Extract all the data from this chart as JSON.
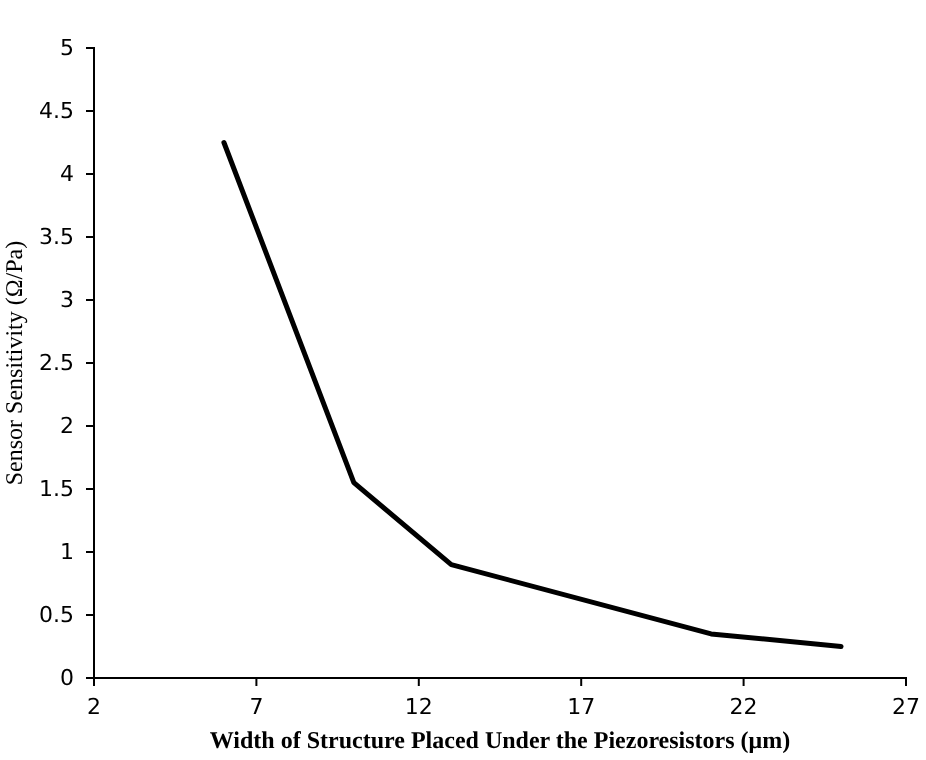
{
  "chart_data": {
    "type": "line",
    "xlabel": "Width of Structure Placed Under the Piezoresistors (μm)",
    "ylabel": "Sensor Sensitivity (Ω/Pa)",
    "x": [
      6,
      10,
      13,
      21,
      25
    ],
    "series": [
      {
        "color": "#000000",
        "values": [
          4.25,
          1.55,
          0.9,
          0.35,
          0.25
        ]
      }
    ],
    "xlim": [
      2,
      27
    ],
    "xticks": [
      2,
      7,
      12,
      17,
      22,
      27
    ],
    "ylim": [
      0,
      5
    ],
    "yticks": [
      0,
      0.5,
      1,
      1.5,
      2,
      2.5,
      3,
      3.5,
      4,
      4.5,
      5
    ],
    "grid": false,
    "marker": "none",
    "line_style": "solid"
  }
}
